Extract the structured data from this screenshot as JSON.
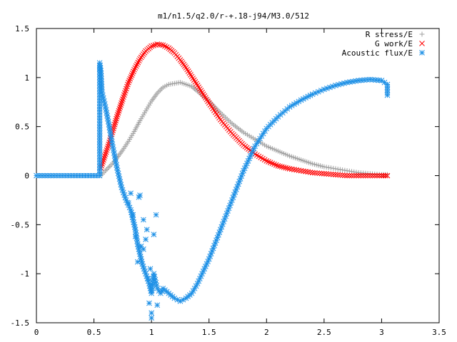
{
  "chart_data": {
    "type": "scatter",
    "title": "m1/n1.5/q2.0/r-+.18-j94/M3.0/512",
    "xlabel": "",
    "ylabel": "",
    "xlim": [
      0,
      3.5
    ],
    "ylim": [
      -1.5,
      1.5
    ],
    "x_ticks": [
      0,
      0.5,
      1,
      1.5,
      2,
      2.5,
      3,
      3.5
    ],
    "x_tick_labels": [
      "0",
      "0.5",
      "1",
      "1.5",
      "2",
      "2.5",
      "3",
      "3.5"
    ],
    "y_ticks": [
      -1.5,
      -1,
      -0.5,
      0,
      0.5,
      1,
      1.5
    ],
    "y_tick_labels": [
      "-1.5",
      "-1",
      "-0.5",
      "0",
      "0.5",
      "1",
      "1.5"
    ],
    "grid": false,
    "legend_position": "top-right",
    "series": [
      {
        "name": "R stress/E",
        "marker": "+",
        "color": "#a0a0a0",
        "x": [
          0.56,
          0.6,
          0.65,
          0.7,
          0.75,
          0.8,
          0.85,
          0.9,
          0.95,
          1.0,
          1.05,
          1.1,
          1.15,
          1.2,
          1.25,
          1.3,
          1.35,
          1.4,
          1.5,
          1.6,
          1.7,
          1.8,
          1.9,
          2.0,
          2.1,
          2.2,
          2.3,
          2.4,
          2.5,
          2.6,
          2.7,
          2.8,
          2.9,
          3.0,
          3.05
        ],
        "y": [
          0.0,
          0.05,
          0.11,
          0.18,
          0.26,
          0.35,
          0.45,
          0.56,
          0.66,
          0.76,
          0.84,
          0.9,
          0.93,
          0.94,
          0.95,
          0.93,
          0.91,
          0.86,
          0.76,
          0.64,
          0.53,
          0.44,
          0.37,
          0.3,
          0.25,
          0.2,
          0.16,
          0.12,
          0.09,
          0.07,
          0.05,
          0.03,
          0.02,
          0.01,
          0.01
        ]
      },
      {
        "name": "G work/E",
        "marker": "x",
        "color": "#ff0000",
        "x": [
          0.56,
          0.6,
          0.65,
          0.7,
          0.75,
          0.8,
          0.85,
          0.9,
          0.95,
          1.0,
          1.05,
          1.1,
          1.15,
          1.2,
          1.25,
          1.3,
          1.35,
          1.4,
          1.5,
          1.6,
          1.7,
          1.8,
          1.9,
          2.0,
          2.1,
          2.2,
          2.3,
          2.4,
          2.5,
          2.6,
          2.7,
          2.8,
          2.9,
          3.0,
          3.05
        ],
        "y": [
          0.08,
          0.22,
          0.4,
          0.6,
          0.78,
          0.95,
          1.08,
          1.19,
          1.27,
          1.32,
          1.34,
          1.33,
          1.3,
          1.25,
          1.18,
          1.1,
          1.01,
          0.92,
          0.74,
          0.57,
          0.43,
          0.31,
          0.22,
          0.15,
          0.1,
          0.07,
          0.05,
          0.03,
          0.02,
          0.01,
          0.0,
          0.0,
          0.0,
          0.0,
          0.0
        ]
      },
      {
        "name": "Acoustic flux/E",
        "marker": "*",
        "color": "#1e90e6",
        "x": [
          0.0,
          0.1,
          0.2,
          0.3,
          0.4,
          0.5,
          0.55,
          0.55,
          0.56,
          0.57,
          0.6,
          0.63,
          0.66,
          0.7,
          0.74,
          0.78,
          0.8,
          0.82,
          0.84,
          0.86,
          0.88,
          0.9,
          0.92,
          0.95,
          0.98,
          1.0,
          1.02,
          1.05,
          1.08,
          1.1,
          1.15,
          1.2,
          1.25,
          1.3,
          1.35,
          1.4,
          1.5,
          1.6,
          1.7,
          1.8,
          1.9,
          2.0,
          2.1,
          2.2,
          2.3,
          2.4,
          2.5,
          2.6,
          2.7,
          2.8,
          2.9,
          3.0,
          3.05,
          3.05
        ],
        "y": [
          0.0,
          0.0,
          0.0,
          0.0,
          0.0,
          0.0,
          0.0,
          1.15,
          1.07,
          0.85,
          0.7,
          0.52,
          0.32,
          0.08,
          -0.12,
          -0.25,
          -0.3,
          -0.35,
          -0.45,
          -0.55,
          -0.7,
          -0.8,
          -0.9,
          -1.0,
          -1.1,
          -1.2,
          -1.0,
          -1.15,
          -1.2,
          -1.15,
          -1.2,
          -1.25,
          -1.28,
          -1.25,
          -1.2,
          -1.1,
          -0.85,
          -0.55,
          -0.25,
          0.05,
          0.3,
          0.48,
          0.6,
          0.7,
          0.77,
          0.83,
          0.88,
          0.92,
          0.95,
          0.97,
          0.98,
          0.97,
          0.93,
          0.82
        ]
      },
      {
        "name": "",
        "marker": "*",
        "color": "#1e90e6",
        "x": [
          0.55,
          0.8,
          0.82,
          0.84,
          0.86,
          0.88,
          0.9,
          0.91,
          0.93,
          0.95,
          0.96,
          0.98,
          1.0,
          1.0,
          1.02,
          1.04,
          0.97,
          1.05,
          0.99,
          0.93,
          0.89
        ],
        "y": [
          1.08,
          -0.28,
          -0.18,
          -0.4,
          -0.62,
          -0.88,
          -0.2,
          -0.72,
          -0.75,
          -0.65,
          -0.55,
          -1.3,
          -1.4,
          -1.45,
          -0.6,
          -0.4,
          -1.05,
          -1.32,
          -0.95,
          -0.45,
          -0.22
        ]
      }
    ]
  }
}
